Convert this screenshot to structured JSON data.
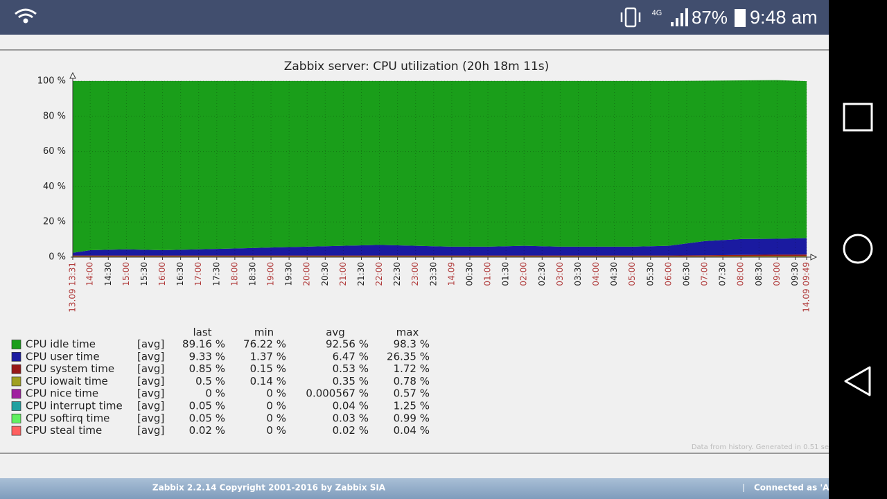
{
  "status_bar": {
    "network": "4G",
    "battery": "87%",
    "time": "9:48 am"
  },
  "chart_data": {
    "type": "area",
    "stacked": true,
    "title": "Zabbix server: CPU utilization (20h 18m 11s)",
    "x": [
      0,
      29,
      89,
      149,
      209,
      269,
      329,
      389,
      449,
      509,
      569,
      629,
      689,
      749,
      809,
      869,
      929,
      989,
      1049,
      1109,
      1169,
      1218
    ],
    "xlim": [
      0,
      1218
    ],
    "xticks": [
      {
        "value": 0,
        "label": "13.09 13:31"
      },
      {
        "value": 29,
        "label": "14:00"
      },
      {
        "value": 59,
        "label": "14:30"
      },
      {
        "value": 89,
        "label": "15:00"
      },
      {
        "value": 119,
        "label": "15:30"
      },
      {
        "value": 149,
        "label": "16:00"
      },
      {
        "value": 179,
        "label": "16:30"
      },
      {
        "value": 209,
        "label": "17:00"
      },
      {
        "value": 239,
        "label": "17:30"
      },
      {
        "value": 269,
        "label": "18:00"
      },
      {
        "value": 299,
        "label": "18:30"
      },
      {
        "value": 329,
        "label": "19:00"
      },
      {
        "value": 359,
        "label": "19:30"
      },
      {
        "value": 389,
        "label": "20:00"
      },
      {
        "value": 419,
        "label": "20:30"
      },
      {
        "value": 449,
        "label": "21:00"
      },
      {
        "value": 479,
        "label": "21:30"
      },
      {
        "value": 509,
        "label": "22:00"
      },
      {
        "value": 539,
        "label": "22:30"
      },
      {
        "value": 569,
        "label": "23:00"
      },
      {
        "value": 599,
        "label": "23:30"
      },
      {
        "value": 629,
        "label": "14.09"
      },
      {
        "value": 659,
        "label": "00:30"
      },
      {
        "value": 689,
        "label": "01:00"
      },
      {
        "value": 719,
        "label": "01:30"
      },
      {
        "value": 749,
        "label": "02:00"
      },
      {
        "value": 779,
        "label": "02:30"
      },
      {
        "value": 809,
        "label": "03:00"
      },
      {
        "value": 839,
        "label": "03:30"
      },
      {
        "value": 869,
        "label": "04:00"
      },
      {
        "value": 899,
        "label": "04:30"
      },
      {
        "value": 929,
        "label": "05:00"
      },
      {
        "value": 959,
        "label": "05:30"
      },
      {
        "value": 989,
        "label": "06:00"
      },
      {
        "value": 1019,
        "label": "06:30"
      },
      {
        "value": 1049,
        "label": "07:00"
      },
      {
        "value": 1079,
        "label": "07:30"
      },
      {
        "value": 1109,
        "label": "08:00"
      },
      {
        "value": 1139,
        "label": "08:30"
      },
      {
        "value": 1169,
        "label": "09:00"
      },
      {
        "value": 1199,
        "label": "09:30"
      },
      {
        "value": 1218,
        "label": "14.09 09:49"
      }
    ],
    "ylim": [
      0,
      100
    ],
    "yticks": [
      {
        "value": 0,
        "label": "0 %"
      },
      {
        "value": 20,
        "label": "20 %"
      },
      {
        "value": 40,
        "label": "40 %"
      },
      {
        "value": 60,
        "label": "60 %"
      },
      {
        "value": 80,
        "label": "80 %"
      },
      {
        "value": 100,
        "label": "100 %"
      }
    ],
    "grid": true,
    "stat_headers": [
      "last",
      "min",
      "avg",
      "max"
    ],
    "series": [
      {
        "name": "CPU idle time",
        "color": "#1a9e1a",
        "func": "[avg]",
        "stats": [
          "89.16 %",
          "76.22 %",
          "92.56 %",
          "98.3 %"
        ],
        "values": [
          97.6,
          96.1,
          95.6,
          96.1,
          95.6,
          95.1,
          94.6,
          94.1,
          93.6,
          93.1,
          93.6,
          94.1,
          94.1,
          93.6,
          94.1,
          94.1,
          94.1,
          93.6,
          91.1,
          90.1,
          90.1,
          89.16
        ]
      },
      {
        "name": "CPU user time",
        "color": "#1a1aa0",
        "func": "[avg]",
        "stats": [
          "9.33 %",
          "1.37 %",
          "6.47 %",
          "26.35 %"
        ],
        "values": [
          1.5,
          3,
          3.5,
          3,
          3.5,
          4,
          4.5,
          5,
          5.5,
          6,
          5.5,
          5,
          5,
          5.5,
          5,
          5,
          5,
          5.5,
          8,
          9,
          9,
          9.33
        ]
      },
      {
        "name": "CPU system time",
        "color": "#981818",
        "func": "[avg]",
        "stats": [
          "0.85 %",
          "0.15 %",
          "0.53 %",
          "1.72 %"
        ],
        "values": [
          0.5,
          0.5,
          0.5,
          0.5,
          0.5,
          0.5,
          0.5,
          0.5,
          0.5,
          0.5,
          0.5,
          0.5,
          0.5,
          0.5,
          0.5,
          0.5,
          0.5,
          0.5,
          0.6,
          0.7,
          0.8,
          0.85
        ]
      },
      {
        "name": "CPU iowait time",
        "color": "#a0a020",
        "func": "[avg]",
        "stats": [
          "0.5 %",
          "0.14 %",
          "0.35 %",
          "0.78 %"
        ],
        "values": [
          0.35,
          0.35,
          0.35,
          0.35,
          0.35,
          0.35,
          0.35,
          0.35,
          0.35,
          0.35,
          0.35,
          0.35,
          0.35,
          0.35,
          0.35,
          0.35,
          0.35,
          0.35,
          0.4,
          0.45,
          0.5,
          0.5
        ]
      },
      {
        "name": "CPU nice time",
        "color": "#a020a0",
        "func": "[avg]",
        "stats": [
          "0 %",
          "0 %",
          "0.000567 %",
          "0.57 %"
        ],
        "values": [
          0,
          0,
          0,
          0,
          0,
          0,
          0,
          0,
          0,
          0,
          0,
          0,
          0,
          0,
          0,
          0,
          0,
          0,
          0,
          0,
          0,
          0
        ]
      },
      {
        "name": "CPU interrupt time",
        "color": "#20a0a0",
        "func": "[avg]",
        "stats": [
          "0.05 %",
          "0 %",
          "0.04 %",
          "1.25 %"
        ],
        "values": [
          0.04,
          0.04,
          0.04,
          0.04,
          0.04,
          0.04,
          0.04,
          0.04,
          0.04,
          0.04,
          0.04,
          0.04,
          0.04,
          0.04,
          0.04,
          0.04,
          0.04,
          0.04,
          0.04,
          0.05,
          0.05,
          0.05
        ]
      },
      {
        "name": "CPU softirq time",
        "color": "#60f060",
        "func": "[avg]",
        "stats": [
          "0.05 %",
          "0 %",
          "0.03 %",
          "0.99 %"
        ],
        "values": [
          0.03,
          0.03,
          0.03,
          0.03,
          0.03,
          0.03,
          0.03,
          0.03,
          0.03,
          0.03,
          0.03,
          0.03,
          0.03,
          0.03,
          0.03,
          0.03,
          0.03,
          0.03,
          0.04,
          0.05,
          0.05,
          0.05
        ]
      },
      {
        "name": "CPU steal time",
        "color": "#ff6060",
        "func": "[avg]",
        "stats": [
          "0.02 %",
          "0 %",
          "0.02 %",
          "0.04 %"
        ],
        "values": [
          0.02,
          0.02,
          0.02,
          0.02,
          0.02,
          0.02,
          0.02,
          0.02,
          0.02,
          0.02,
          0.02,
          0.02,
          0.02,
          0.02,
          0.02,
          0.02,
          0.02,
          0.02,
          0.02,
          0.02,
          0.02,
          0.02
        ]
      }
    ],
    "note": "Data from history. Generated in 0.51 se"
  },
  "footer": {
    "copyright": "Zabbix 2.2.14 Copyright 2001-2016 by Zabbix SIA",
    "user": "Connected as 'Adm"
  }
}
